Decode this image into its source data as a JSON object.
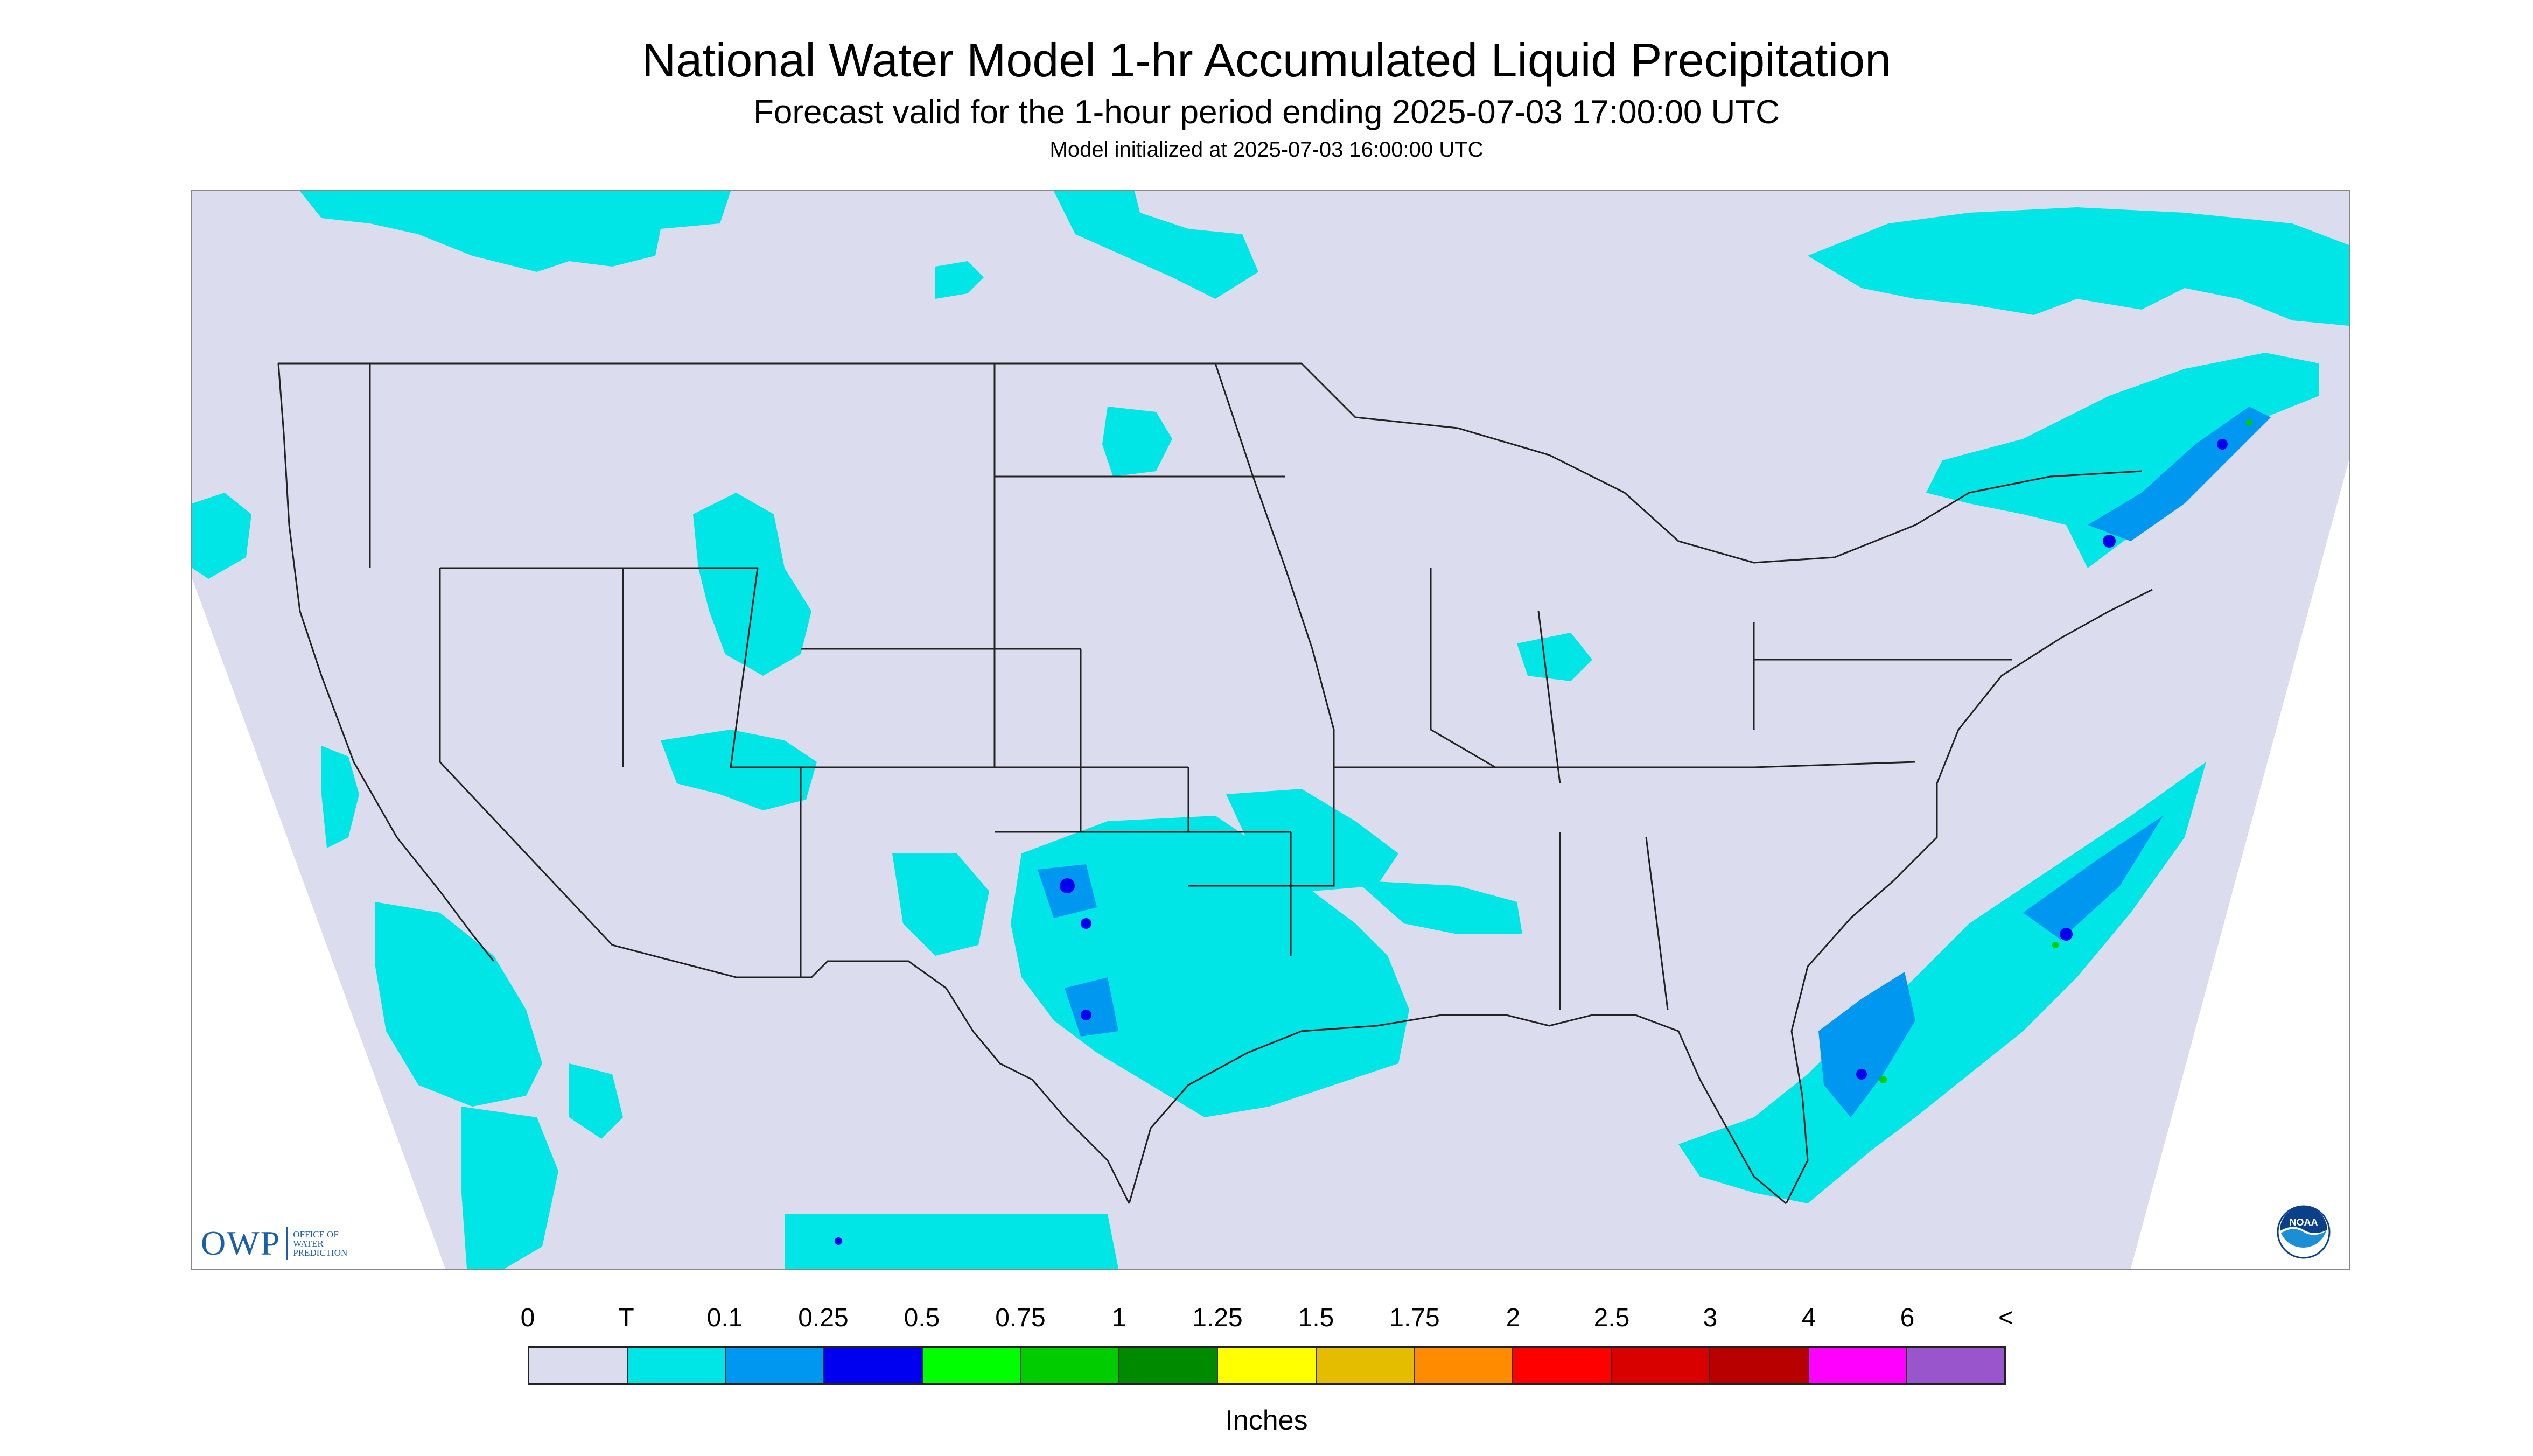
{
  "header": {
    "title": "National Water Model 1-hr Accumulated Liquid Precipitation",
    "subtitle": "Forecast valid for the 1-hour period ending 2025-07-03 17:00:00 UTC",
    "init": "Model initialized at 2025-07-03 16:00:00 UTC"
  },
  "map": {
    "projection": "Lambert conformal, CONUS",
    "background_color": "#dcdcef",
    "outside_color": "#ffffff",
    "boundary_color": "#222222"
  },
  "logos": {
    "owp_mark": "OWP",
    "owp_text": [
      "OFFICE OF",
      "WATER",
      "PREDICTION"
    ],
    "noaa_text": "NOAA",
    "noaa_icon": "noaa-emblem-icon"
  },
  "legend": {
    "unit": "Inches",
    "labels": [
      "0",
      "T",
      "0.1",
      "0.25",
      "0.5",
      "0.75",
      "1",
      "1.25",
      "1.5",
      "1.75",
      "2",
      "2.5",
      "3",
      "4",
      "6",
      "<"
    ],
    "colors": [
      "#dcdcef",
      "#00e5e5",
      "#0097f0",
      "#0000f0",
      "#00ff00",
      "#00cc00",
      "#008a00",
      "#ffff00",
      "#e5bd00",
      "#ff8c00",
      "#ff0000",
      "#d90000",
      "#b80000",
      "#ff00ff",
      "#9955cc"
    ]
  }
}
